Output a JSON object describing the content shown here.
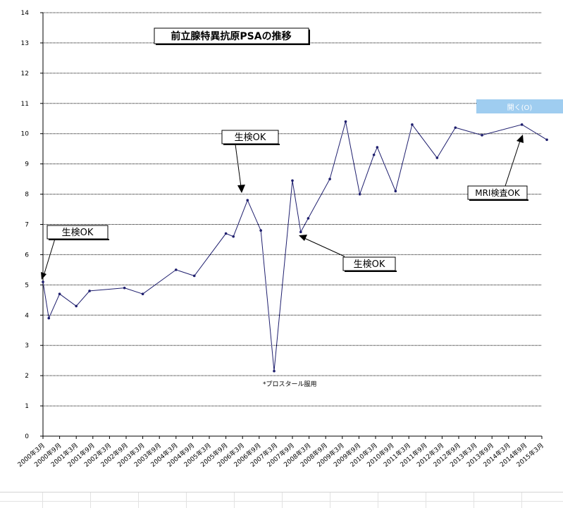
{
  "chart_data": {
    "type": "line",
    "title": "前立腺特異抗原PSAの推移",
    "ylim": [
      0,
      14
    ],
    "yticks": [
      0,
      1,
      2,
      3,
      4,
      5,
      6,
      7,
      8,
      9,
      10,
      11,
      12,
      13,
      14
    ],
    "grid": true,
    "categories": [
      "2000年3月",
      "2000年9月",
      "2001年3月",
      "2001年9月",
      "2002年3月",
      "2002年9月",
      "2003年3月",
      "2003年9月",
      "2004年3月",
      "2004年9月",
      "2005年3月",
      "2005年9月",
      "2006年3月",
      "2006年9月",
      "2007年3月",
      "2007年9月",
      "2008年3月",
      "2008年9月",
      "2009年3月",
      "2009年9月",
      "2010年3月",
      "2010年9月",
      "2011年3月",
      "2011年9月",
      "2012年3月",
      "2012年9月",
      "2013年3月",
      "2013年9月",
      "2014年3月",
      "2014年9月",
      "2015年3月"
    ],
    "series": [
      {
        "color": "#1f1f6e",
        "points": [
          {
            "x": 0.0,
            "y": 5.1
          },
          {
            "x": 0.35,
            "y": 3.9
          },
          {
            "x": 1.0,
            "y": 4.7
          },
          {
            "x": 2.0,
            "y": 4.3
          },
          {
            "x": 2.8,
            "y": 4.8
          },
          {
            "x": 4.9,
            "y": 4.9
          },
          {
            "x": 6.0,
            "y": 4.7
          },
          {
            "x": 8.0,
            "y": 5.5
          },
          {
            "x": 9.1,
            "y": 5.3
          },
          {
            "x": 11.0,
            "y": 6.7
          },
          {
            "x": 11.45,
            "y": 6.6
          },
          {
            "x": 12.3,
            "y": 7.8
          },
          {
            "x": 13.1,
            "y": 6.8
          },
          {
            "x": 13.9,
            "y": 2.15
          },
          {
            "x": 15.0,
            "y": 8.45
          },
          {
            "x": 15.5,
            "y": 6.75
          },
          {
            "x": 15.95,
            "y": 7.2
          },
          {
            "x": 17.25,
            "y": 8.5
          },
          {
            "x": 18.2,
            "y": 10.4
          },
          {
            "x": 19.05,
            "y": 8.0
          },
          {
            "x": 19.9,
            "y": 9.3
          },
          {
            "x": 20.1,
            "y": 9.55
          },
          {
            "x": 21.2,
            "y": 8.1
          },
          {
            "x": 22.2,
            "y": 10.3
          },
          {
            "x": 23.7,
            "y": 9.2
          },
          {
            "x": 24.8,
            "y": 10.2
          },
          {
            "x": 26.4,
            "y": 9.95
          },
          {
            "x": 28.8,
            "y": 10.3
          },
          {
            "x": 30.3,
            "y": 9.8
          }
        ]
      }
    ],
    "annotations": [
      {
        "text": "生検OK",
        "target_index": 0
      },
      {
        "text": "生検OK",
        "target_index": 11
      },
      {
        "text": "生検OK",
        "target_index": 15
      },
      {
        "text": "MRI検査OK",
        "target_index": 27
      },
      {
        "text": "*プロスタール服用",
        "target_index": 13
      }
    ]
  },
  "open_button": {
    "label": "開く(O)"
  }
}
